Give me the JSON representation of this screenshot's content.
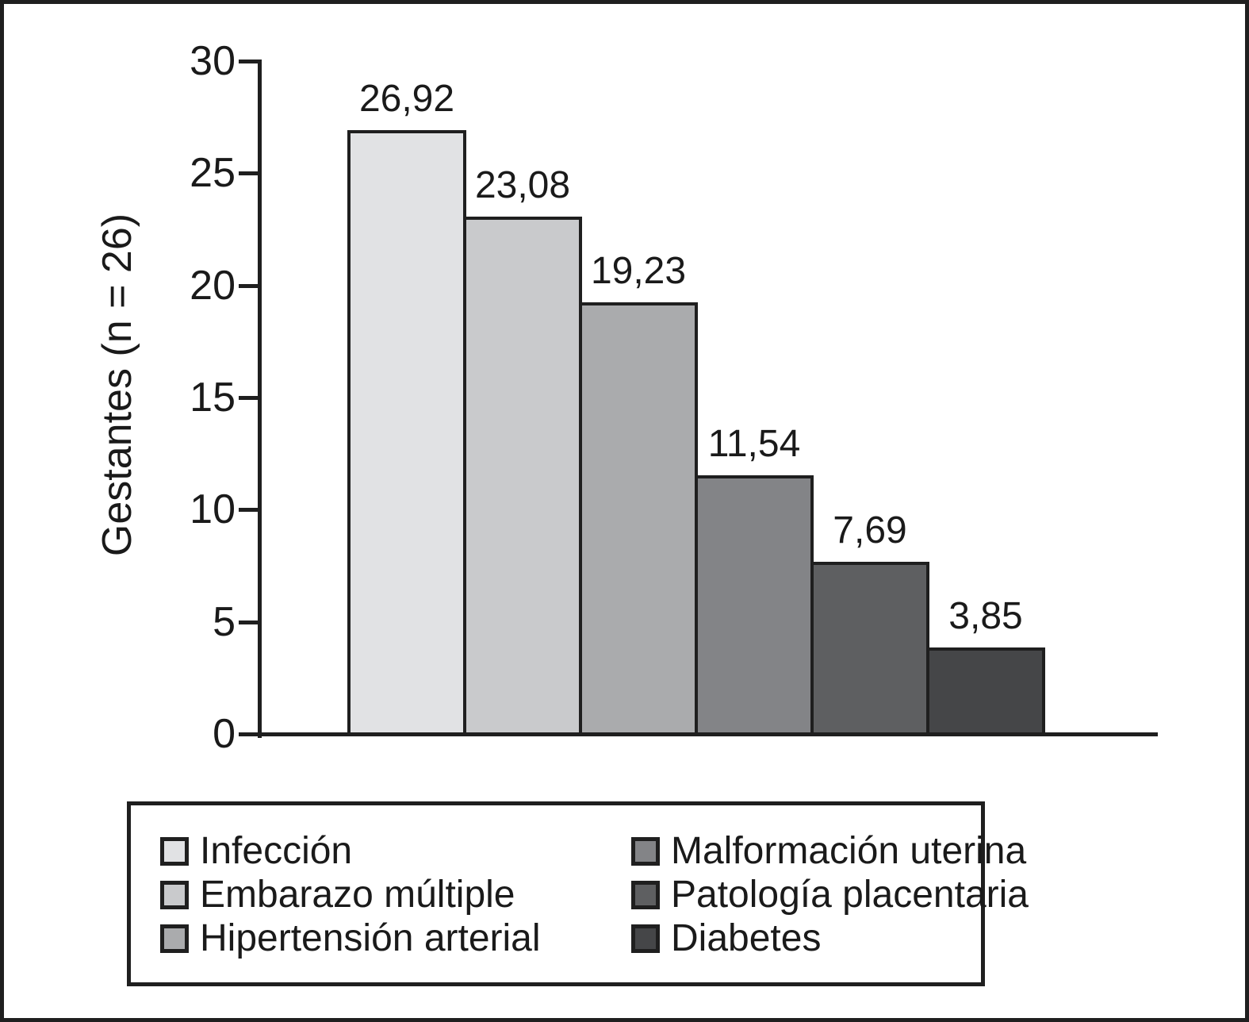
{
  "chart_data": {
    "type": "bar",
    "title": "",
    "xlabel": "",
    "ylabel": "Gestantes (n = 26)",
    "categories": [
      "Infección",
      "Embarazo múltiple",
      "Hipertensión arterial",
      "Malformación uterina",
      "Patología placentaria",
      "Diabetes"
    ],
    "values": [
      26.92,
      23.08,
      19.23,
      11.54,
      7.69,
      3.85
    ],
    "value_labels": [
      "26,92",
      "23,08",
      "19,23",
      "11,54",
      "7,69",
      "3,85"
    ],
    "bar_colors": [
      "#e1e2e4",
      "#c9cacc",
      "#aaabad",
      "#838487",
      "#5e5f61",
      "#454648"
    ],
    "ylim": [
      0,
      30
    ],
    "yticks": [
      0,
      5,
      10,
      15,
      20,
      25,
      30
    ],
    "grid": false,
    "legend_position": "bottom",
    "axis_color": "#1f1f1f",
    "text_color": "#1a1a1a",
    "background_color": "#ffffff"
  },
  "legend": {
    "columns": 2,
    "items": [
      {
        "label": "Infección",
        "color": "#e1e2e4"
      },
      {
        "label": "Embarazo múltiple",
        "color": "#c9cacc"
      },
      {
        "label": "Hipertensión arterial",
        "color": "#aaabad"
      },
      {
        "label": "Malformación uterina",
        "color": "#838487"
      },
      {
        "label": "Patología placentaria",
        "color": "#5e5f61"
      },
      {
        "label": "Diabetes",
        "color": "#454648"
      }
    ]
  }
}
